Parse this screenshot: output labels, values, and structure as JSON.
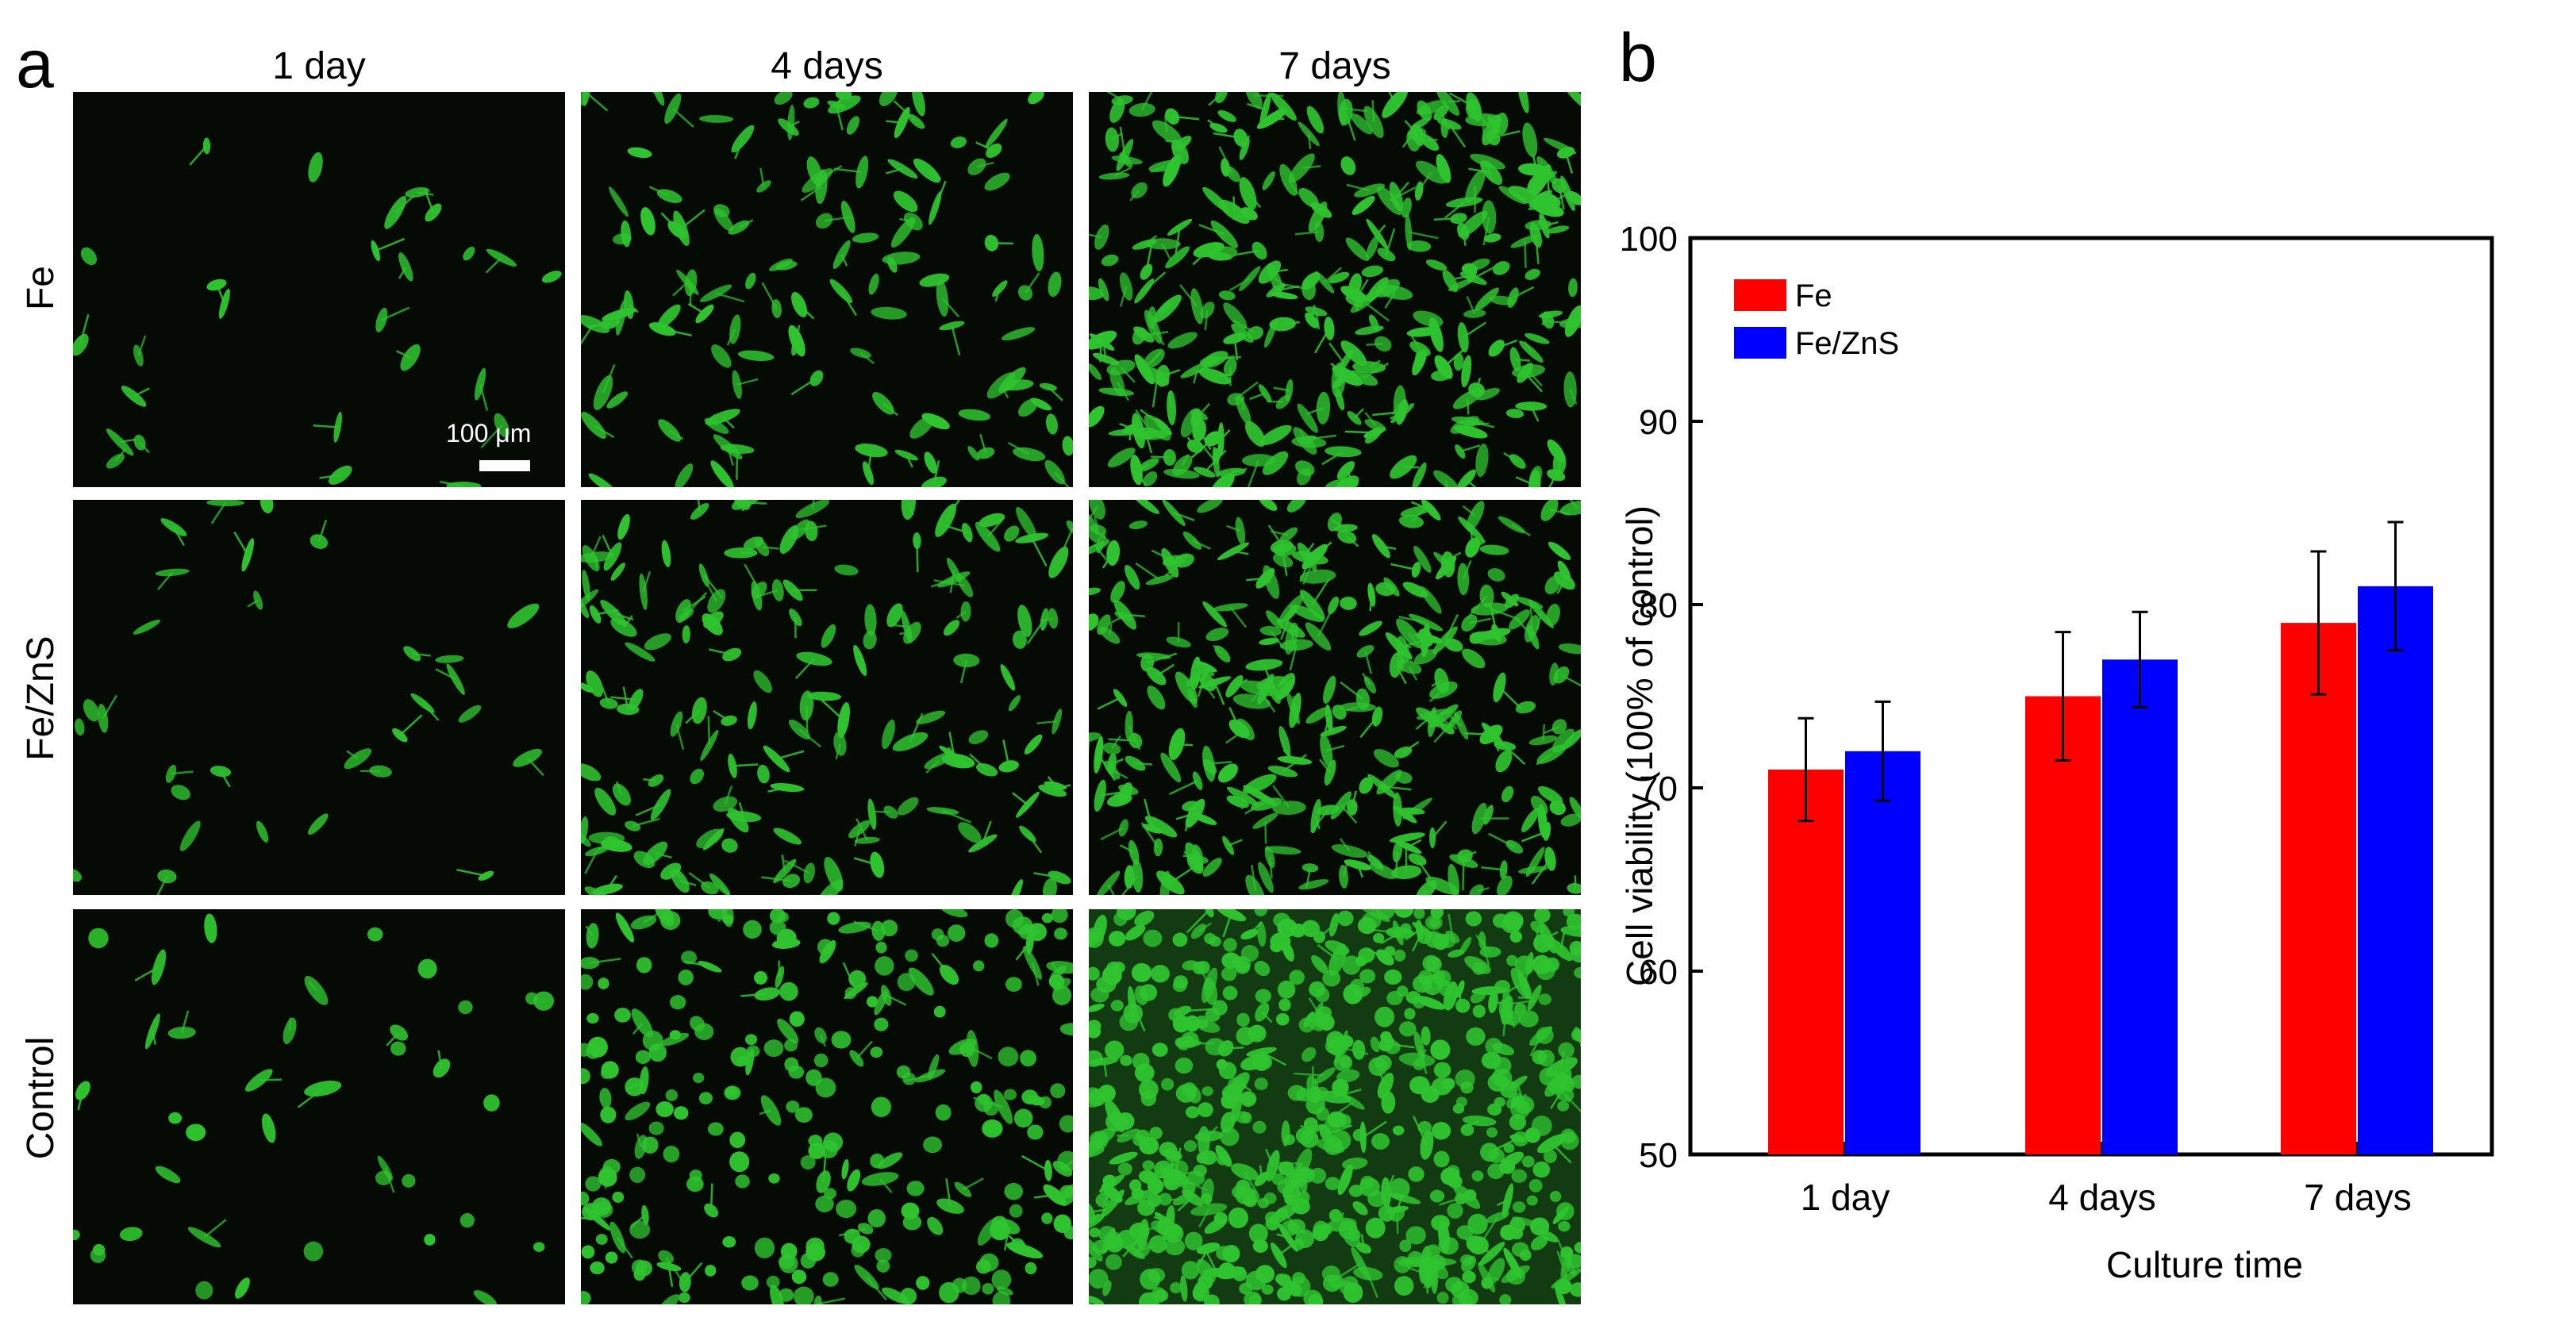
{
  "panel_a": {
    "letter": "a",
    "columns": [
      "1 day",
      "4 days",
      "7 days"
    ],
    "rows": [
      "Fe",
      "Fe/ZnS",
      "Control"
    ],
    "scale_bar": "100 μm",
    "cell_density": [
      [
        26,
        120,
        300
      ],
      [
        30,
        150,
        280
      ],
      [
        38,
        260,
        620
      ]
    ]
  },
  "panel_b": {
    "letter": "b"
  },
  "colors": {
    "fe": "#ff0000",
    "fezns": "#0000ff",
    "cell_green": "#2fc42f"
  },
  "chart_data": {
    "type": "bar",
    "categories": [
      "1 day",
      "4 days",
      "7 days"
    ],
    "series": [
      {
        "name": "Fe",
        "values": [
          71,
          75,
          79
        ],
        "errors": [
          2.8,
          3.5,
          3.9
        ],
        "color": "#ff0000"
      },
      {
        "name": "Fe/ZnS",
        "values": [
          72,
          77,
          81
        ],
        "errors": [
          2.7,
          2.6,
          3.5
        ],
        "color": "#0000ff"
      }
    ],
    "xlabel": "Culture time",
    "ylabel": "Cell  viability (100% of control)",
    "ylim": [
      50,
      100
    ],
    "yticks": [
      50,
      60,
      70,
      80,
      90,
      100
    ],
    "grid": false,
    "legend_position": "top-left"
  }
}
